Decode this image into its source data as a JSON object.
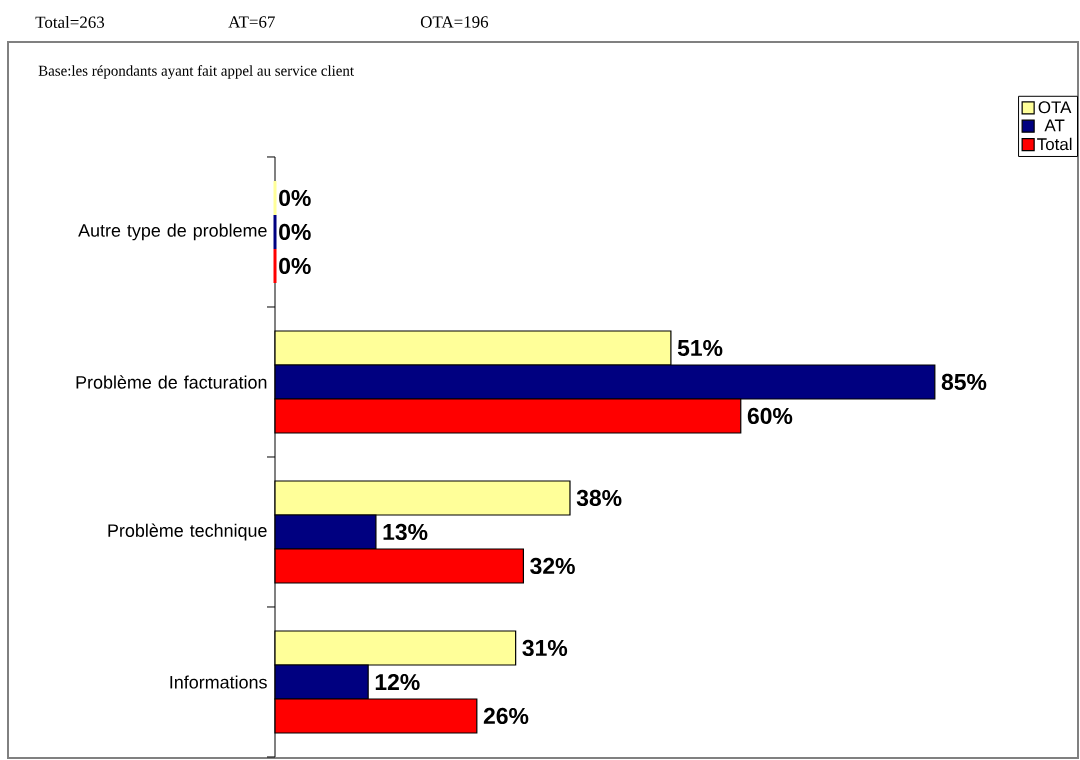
{
  "chart_data": {
    "type": "bar",
    "orientation": "horizontal",
    "annotations": [
      "Total=263",
      "AT=67",
      "OTA=196",
      "Base:les répondants ayant fait appel au service client"
    ],
    "categories": [
      "Autre type de probleme",
      "Problème de facturation",
      "Problème technique",
      "Informations"
    ],
    "series": [
      {
        "name": "OTA",
        "color": "#ffff99",
        "values": [
          0,
          51,
          38,
          31
        ],
        "value_labels": [
          "0%",
          "51%",
          "38%",
          "31%"
        ]
      },
      {
        "name": "AT",
        "color": "#000080",
        "values": [
          0,
          85,
          13,
          12
        ],
        "value_labels": [
          "0%",
          "85%",
          "13%",
          "12%"
        ]
      },
      {
        "name": "Total",
        "color": "#ff0000",
        "values": [
          0,
          60,
          32,
          26
        ],
        "value_labels": [
          "0%",
          "60%",
          "32%",
          "26%"
        ]
      }
    ],
    "legend": "top right"
  }
}
